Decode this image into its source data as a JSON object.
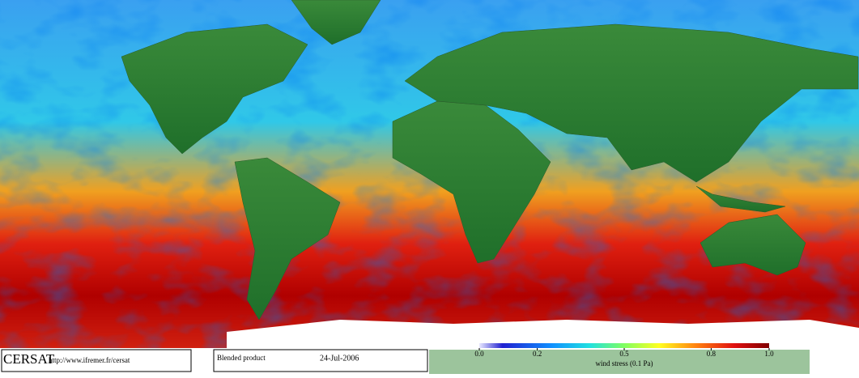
{
  "footer": {
    "logo": "CERSAT",
    "url": "http://www.ifremer.fr/cersat",
    "product": "Blended product",
    "date": "24-Jul-2006"
  },
  "colorbar": {
    "label": "wind stress (0.1 Pa)",
    "range": [
      0,
      1
    ],
    "ticks": [
      {
        "value": 0,
        "label": "0.0"
      },
      0.2,
      0.5,
      0.8,
      {
        "value": 1,
        "label": "1.0"
      }
    ]
  }
}
